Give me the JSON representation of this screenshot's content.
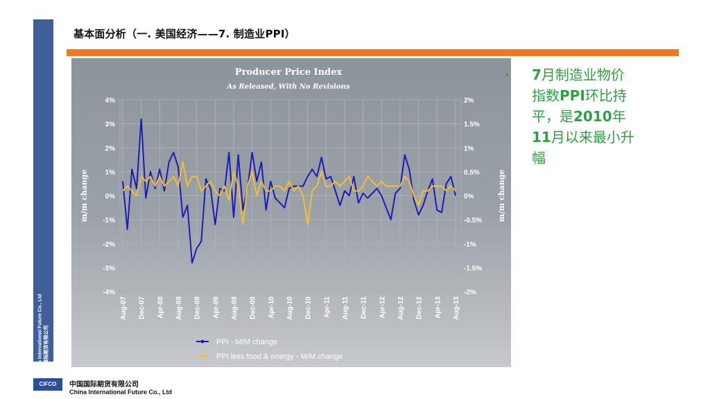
{
  "header": {
    "title": "基本面分析（一. 美国经济——7. 制造业PPI）"
  },
  "sidebar": {
    "company_en": "China International Future Co., Ltd",
    "company_cn": "中国国际期货有限公司"
  },
  "commentary": {
    "bullet": "•",
    "text_parts": [
      "7",
      "月制造业物价指数",
      "PPI",
      "环比持平，是",
      "2010",
      "年",
      "11",
      "月以来最小升幅"
    ]
  },
  "footer": {
    "logo": "CIFCO",
    "company_cn": "中国国际期货有限公司",
    "company_en": "China International Future Co., Ltd"
  },
  "colors": {
    "ppi": "#1c1cb4",
    "core": "#f0c030",
    "orange": "#f07820",
    "sidebar": "#3f5f9a",
    "text_green": "#2ea043"
  },
  "chart_data": {
    "type": "line",
    "title": "Producer Price Index",
    "subtitle": "As Released, With No Revisions",
    "ylabel_left": "m/m change",
    "ylabel_right": "m/m change",
    "y_left_ticks": [
      "4%",
      "3%",
      "2%",
      "1%",
      "0%",
      "-1%",
      "-2%",
      "-3%",
      "-4%"
    ],
    "y_right_ticks": [
      "2%",
      "1.5%",
      "1%",
      "0.5%",
      "0%",
      "-0.5%",
      "-1%",
      "-1.5%",
      "-2%"
    ],
    "ylim_left": [
      -4,
      4
    ],
    "ylim_right": [
      -2,
      2
    ],
    "x_ticks": [
      "Aug-07",
      "Dec-07",
      "Apr-08",
      "Aug-08",
      "Dec-08",
      "Apr-09",
      "Aug-09",
      "Dec-09",
      "Apr-10",
      "Aug-10",
      "Dec-10",
      "Apr-11",
      "Aug-11",
      "Dec-11",
      "Apr-12",
      "Aug-12",
      "Dec-12",
      "Apr-13",
      "Aug-13"
    ],
    "grid": true,
    "legend_position": "bottom",
    "series": [
      {
        "name": "PPI - M/M change",
        "axis": "left",
        "values": [
          0.6,
          -1.4,
          1.1,
          0.3,
          3.2,
          -0.1,
          1.0,
          0.3,
          1.1,
          0.2,
          1.4,
          1.8,
          1.2,
          -0.9,
          -0.4,
          -2.8,
          -2.2,
          -1.9,
          0.7,
          0.3,
          -1.2,
          0.3,
          0.2,
          1.8,
          -0.9,
          1.7,
          -0.6,
          0.3,
          1.8,
          0.6,
          1.4,
          -0.6,
          0.6,
          -0.1,
          -0.3,
          -0.5,
          0.3,
          0.4,
          0.4,
          0.4,
          0.8,
          1.1,
          0.8,
          1.6,
          0.7,
          0.8,
          0.2,
          -0.4,
          0.2,
          0.0,
          0.8,
          -0.3,
          0.1,
          -0.1,
          0.1,
          0.3,
          0.0,
          -0.5,
          -1.0,
          0.1,
          0.3,
          1.7,
          1.1,
          -0.2,
          -0.8,
          -0.4,
          0.2,
          0.7,
          -0.6,
          -0.7,
          0.5,
          0.8,
          0.0
        ]
      },
      {
        "name": "PPI less food & energy - M/M change",
        "axis": "right",
        "values": [
          0.1,
          0.2,
          0.1,
          0.0,
          0.4,
          0.3,
          0.4,
          0.2,
          0.4,
          0.2,
          0.3,
          0.4,
          0.2,
          0.7,
          0.2,
          0.4,
          0.4,
          0.1,
          0.2,
          0.3,
          0.1,
          0.0,
          0.2,
          -0.1,
          0.5,
          0.2,
          -0.6,
          0.2,
          0.5,
          0.0,
          0.3,
          0.1,
          0.1,
          0.2,
          0.2,
          0.1,
          0.3,
          0.1,
          0.2,
          0.0,
          -0.6,
          0.1,
          0.2,
          0.5,
          0.2,
          0.2,
          0.3,
          0.2,
          0.3,
          0.4,
          0.1,
          0.1,
          0.2,
          0.4,
          0.3,
          0.2,
          0.3,
          0.2,
          0.2,
          0.2,
          0.2,
          0.4,
          0.3,
          0.0,
          -0.2,
          0.1,
          0.1,
          0.2,
          0.2,
          0.2,
          0.1,
          0.2,
          0.1
        ]
      }
    ]
  }
}
